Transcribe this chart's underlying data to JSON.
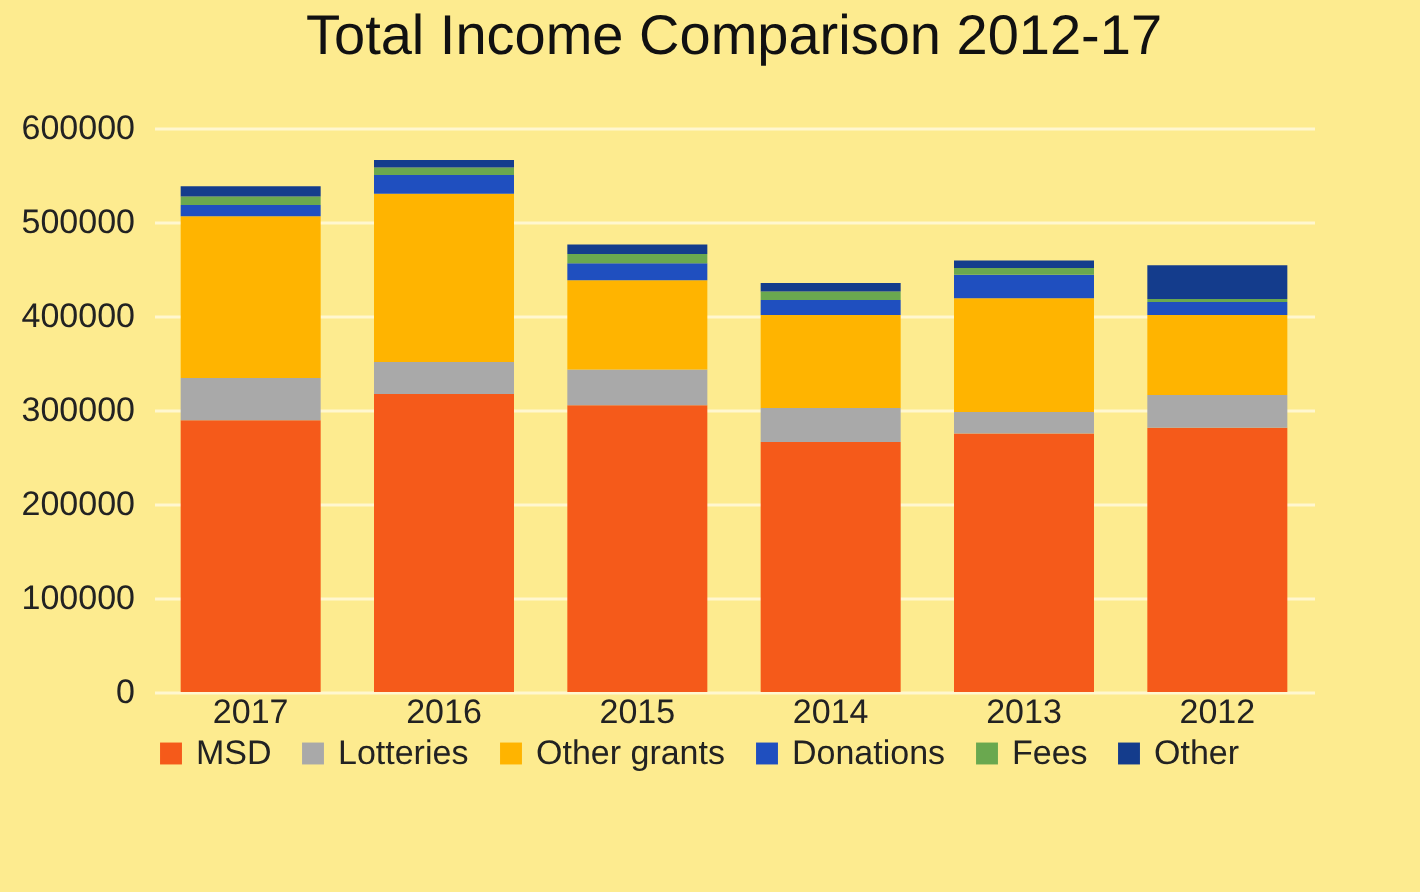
{
  "chart_data": {
    "type": "bar",
    "title": "Total Income Comparison 2012-17",
    "categories": [
      "2017",
      "2016",
      "2015",
      "2014",
      "2013",
      "2012"
    ],
    "stacked": true,
    "series": [
      {
        "name": "MSD",
        "color": "#f55a1a",
        "values": [
          289000,
          317000,
          305000,
          266000,
          275000,
          281000
        ]
      },
      {
        "name": "Lotteries",
        "color": "#a9a9a9",
        "values": [
          45000,
          34000,
          38000,
          36000,
          23000,
          35000
        ]
      },
      {
        "name": "Other grants",
        "color": "#ffb400",
        "values": [
          172000,
          179000,
          95000,
          99000,
          121000,
          85000
        ]
      },
      {
        "name": "Donations",
        "color": "#1f4fbf",
        "values": [
          12000,
          20000,
          18000,
          16000,
          25000,
          14000
        ]
      },
      {
        "name": "Fees",
        "color": "#6aa84f",
        "values": [
          9000,
          8000,
          10000,
          9000,
          7000,
          3000
        ]
      },
      {
        "name": "Other",
        "color": "#143c8c",
        "values": [
          11000,
          8000,
          10000,
          9000,
          8000,
          36000
        ]
      }
    ],
    "ylim": [
      0,
      600000
    ],
    "yticks": [
      0,
      100000,
      200000,
      300000,
      400000,
      500000,
      600000
    ],
    "grid": "y",
    "legend": "bottom"
  }
}
